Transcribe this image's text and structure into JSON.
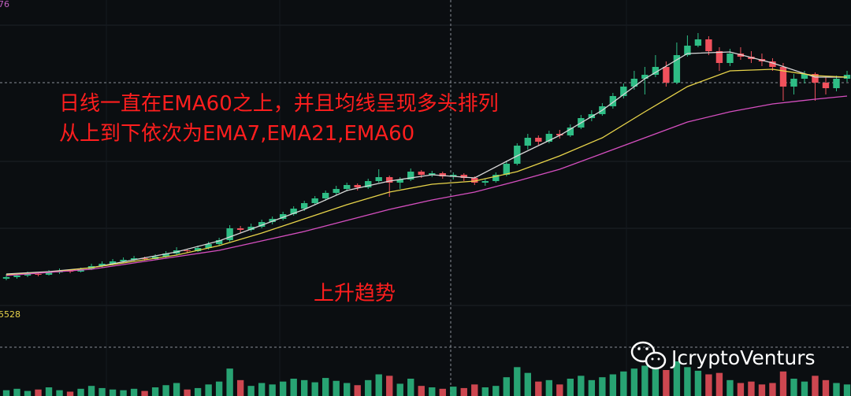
{
  "chart_data": {
    "type": "candlestick",
    "top_label": "76",
    "volume_label": "5528",
    "annotations": [
      "日线一直在EMA60之上，并且均线呈现多头排列",
      "从上到下依次为EMA7,EMA21,EMA60",
      "上升趋势"
    ],
    "watermark": "JcryptoVenturs",
    "up_color": "#2ebd85",
    "down_color": "#f0515c",
    "ylim": [
      0,
      390
    ],
    "volume_ylim": [
      0,
      60
    ],
    "ohlc": [
      [
        36,
        42,
        34,
        38
      ],
      [
        38,
        43,
        36,
        40
      ],
      [
        40,
        45,
        38,
        42
      ],
      [
        42,
        44,
        39,
        41
      ],
      [
        41,
        47,
        40,
        44
      ],
      [
        44,
        49,
        42,
        46
      ],
      [
        46,
        48,
        43,
        45
      ],
      [
        45,
        50,
        44,
        48
      ],
      [
        48,
        55,
        47,
        52
      ],
      [
        52,
        58,
        50,
        55
      ],
      [
        55,
        61,
        53,
        58
      ],
      [
        58,
        63,
        56,
        60
      ],
      [
        60,
        65,
        58,
        62
      ],
      [
        62,
        64,
        59,
        61
      ],
      [
        61,
        67,
        60,
        64
      ],
      [
        64,
        71,
        62,
        68
      ],
      [
        68,
        76,
        66,
        72
      ],
      [
        72,
        74,
        69,
        71
      ],
      [
        71,
        78,
        70,
        75
      ],
      [
        75,
        83,
        73,
        80
      ],
      [
        80,
        88,
        78,
        85
      ],
      [
        85,
        104,
        83,
        100
      ],
      [
        100,
        103,
        94,
        98
      ],
      [
        98,
        106,
        96,
        102
      ],
      [
        102,
        111,
        100,
        108
      ],
      [
        108,
        115,
        105,
        112
      ],
      [
        112,
        121,
        110,
        118
      ],
      [
        118,
        128,
        116,
        125
      ],
      [
        125,
        135,
        122,
        132
      ],
      [
        132,
        141,
        130,
        138
      ],
      [
        138,
        148,
        135,
        145
      ],
      [
        145,
        154,
        142,
        150
      ],
      [
        150,
        158,
        147,
        155
      ],
      [
        155,
        157,
        148,
        152
      ],
      [
        152,
        163,
        150,
        160
      ],
      [
        160,
        175,
        158,
        165
      ],
      [
        165,
        167,
        140,
        158
      ],
      [
        158,
        165,
        150,
        162
      ],
      [
        162,
        176,
        160,
        172
      ],
      [
        172,
        174,
        164,
        168
      ],
      [
        168,
        173,
        165,
        170
      ],
      [
        170,
        172,
        163,
        166
      ],
      [
        166,
        171,
        162,
        168
      ],
      [
        168,
        170,
        160,
        164
      ],
      [
        164,
        166,
        155,
        158
      ],
      [
        158,
        163,
        154,
        160
      ],
      [
        160,
        171,
        158,
        168
      ],
      [
        168,
        186,
        166,
        182
      ],
      [
        182,
        208,
        180,
        205
      ],
      [
        205,
        220,
        200,
        215
      ],
      [
        215,
        218,
        206,
        210
      ],
      [
        210,
        224,
        208,
        220
      ],
      [
        220,
        225,
        214,
        218
      ],
      [
        218,
        232,
        216,
        228
      ],
      [
        228,
        244,
        226,
        240
      ],
      [
        240,
        250,
        236,
        245
      ],
      [
        245,
        259,
        243,
        255
      ],
      [
        255,
        272,
        252,
        268
      ],
      [
        268,
        284,
        265,
        280
      ],
      [
        280,
        300,
        276,
        290
      ],
      [
        290,
        305,
        270,
        295
      ],
      [
        295,
        320,
        292,
        305
      ],
      [
        305,
        312,
        280,
        285
      ],
      [
        285,
        336,
        283,
        320
      ],
      [
        320,
        345,
        318,
        332
      ],
      [
        332,
        348,
        330,
        340
      ],
      [
        340,
        344,
        320,
        325
      ],
      [
        325,
        330,
        300,
        310
      ],
      [
        310,
        328,
        306,
        322
      ],
      [
        322,
        330,
        314,
        318
      ],
      [
        318,
        325,
        310,
        315
      ],
      [
        315,
        322,
        306,
        312
      ],
      [
        312,
        316,
        300,
        305
      ],
      [
        305,
        310,
        262,
        280
      ],
      [
        280,
        296,
        270,
        290
      ],
      [
        290,
        300,
        284,
        296
      ],
      [
        296,
        298,
        262,
        285
      ],
      [
        285,
        292,
        270,
        278
      ],
      [
        278,
        294,
        274,
        290
      ],
      [
        290,
        300,
        286,
        295
      ]
    ],
    "volumes": [
      8,
      10,
      7,
      9,
      12,
      8,
      6,
      10,
      14,
      11,
      9,
      8,
      10,
      7,
      12,
      15,
      18,
      9,
      11,
      16,
      20,
      38,
      22,
      14,
      18,
      16,
      20,
      24,
      22,
      19,
      25,
      21,
      18,
      15,
      22,
      30,
      28,
      17,
      24,
      14,
      12,
      10,
      13,
      11,
      16,
      12,
      14,
      26,
      40,
      32,
      20,
      22,
      16,
      24,
      28,
      22,
      26,
      30,
      34,
      38,
      42,
      45,
      36,
      48,
      40,
      35,
      30,
      32,
      22,
      18,
      20,
      16,
      18,
      34,
      24,
      20,
      28,
      22,
      18,
      16
    ],
    "ema_x": [
      0,
      4,
      8,
      12,
      16,
      20,
      24,
      28,
      32,
      36,
      40,
      44,
      48,
      52,
      56,
      60,
      64,
      68,
      72,
      76,
      79
    ],
    "series": [
      {
        "name": "EMA7",
        "color": "#d8d8d8",
        "values": [
          42,
          45,
          50,
          60,
          70,
          84,
          104,
          124,
          148,
          160,
          168,
          164,
          192,
          218,
          250,
          290,
          322,
          324,
          310,
          292,
          292
        ]
      },
      {
        "name": "EMA21",
        "color": "#e8d44a",
        "values": [
          41,
          44,
          50,
          58,
          66,
          78,
          94,
          112,
          130,
          146,
          156,
          160,
          172,
          192,
          215,
          248,
          280,
          300,
          302,
          294,
          292
        ]
      },
      {
        "name": "EMA60",
        "color": "#d64fc0",
        "values": [
          40,
          44,
          48,
          56,
          64,
          72,
          84,
          96,
          110,
          124,
          136,
          146,
          160,
          175,
          195,
          215,
          235,
          248,
          258,
          264,
          268
        ]
      }
    ]
  }
}
